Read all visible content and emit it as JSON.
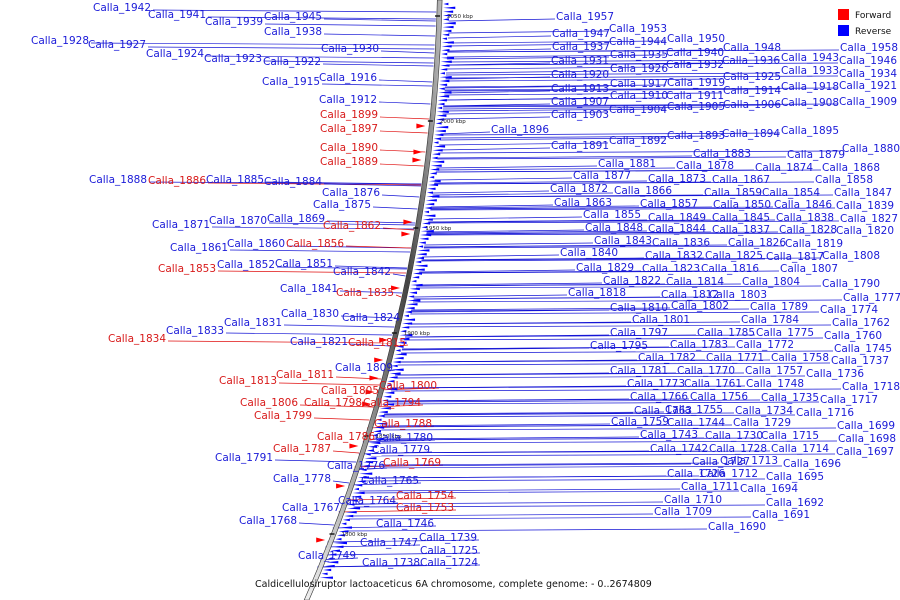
{
  "caption": "Caldicellulosiruptor lactoaceticus 6A chromosome, complete genome: - 0..2674809",
  "legend": {
    "forward": {
      "label": "Forward",
      "color": "#ff0000"
    },
    "reverse": {
      "label": "Reverse",
      "color": "#0000ff"
    }
  },
  "ticks": [
    "2050 kbp",
    "2000 kbp",
    "1950 kbp",
    "1900 kbp",
    "1850 kbp",
    "1800 kbp"
  ],
  "left_labels": [
    {
      "text": "Calla_1942",
      "strand": "reverse"
    },
    {
      "text": "Calla_1941",
      "strand": "reverse"
    },
    {
      "text": "Calla_1939",
      "strand": "reverse"
    },
    {
      "text": "Calla_1945",
      "strand": "reverse"
    },
    {
      "text": "Calla_1938",
      "strand": "reverse"
    },
    {
      "text": "Calla_1928",
      "strand": "reverse"
    },
    {
      "text": "Calla_1927",
      "strand": "reverse"
    },
    {
      "text": "Calla_1930",
      "strand": "reverse"
    },
    {
      "text": "Calla_1924",
      "strand": "reverse"
    },
    {
      "text": "Calla_1923",
      "strand": "reverse"
    },
    {
      "text": "Calla_1922",
      "strand": "reverse"
    },
    {
      "text": "Calla_1916",
      "strand": "reverse"
    },
    {
      "text": "Calla_1915",
      "strand": "reverse"
    },
    {
      "text": "Calla_1912",
      "strand": "reverse"
    },
    {
      "text": "Calla_1899",
      "strand": "forward"
    },
    {
      "text": "Calla_1897",
      "strand": "forward"
    },
    {
      "text": "Calla_1890",
      "strand": "forward"
    },
    {
      "text": "Calla_1889",
      "strand": "forward"
    },
    {
      "text": "Calla_1888",
      "strand": "reverse"
    },
    {
      "text": "Calla_1886",
      "strand": "forward"
    },
    {
      "text": "Calla_1885",
      "strand": "reverse"
    },
    {
      "text": "Calla_1884",
      "strand": "reverse"
    },
    {
      "text": "Calla_1876",
      "strand": "reverse"
    },
    {
      "text": "Calla_1875",
      "strand": "reverse"
    },
    {
      "text": "Calla_1871",
      "strand": "reverse"
    },
    {
      "text": "Calla_1870",
      "strand": "reverse"
    },
    {
      "text": "Calla_1869",
      "strand": "reverse"
    },
    {
      "text": "Calla_1862",
      "strand": "forward"
    },
    {
      "text": "Calla_1861",
      "strand": "reverse"
    },
    {
      "text": "Calla_1860",
      "strand": "reverse"
    },
    {
      "text": "Calla_1856",
      "strand": "forward"
    },
    {
      "text": "Calla_1853",
      "strand": "forward"
    },
    {
      "text": "Calla_1852",
      "strand": "reverse"
    },
    {
      "text": "Calla_1851",
      "strand": "reverse"
    },
    {
      "text": "Calla_1842",
      "strand": "reverse"
    },
    {
      "text": "Calla_1841",
      "strand": "reverse"
    },
    {
      "text": "Calla_1835",
      "strand": "forward"
    },
    {
      "text": "Calla_1830",
      "strand": "reverse"
    },
    {
      "text": "Calla_1831",
      "strand": "reverse"
    },
    {
      "text": "Calla_1824",
      "strand": "reverse"
    },
    {
      "text": "Calla_1833",
      "strand": "reverse"
    },
    {
      "text": "Calla_1834",
      "strand": "forward"
    },
    {
      "text": "Calla_1821",
      "strand": "reverse"
    },
    {
      "text": "Calla_1815",
      "strand": "forward"
    },
    {
      "text": "Calla_1809",
      "strand": "reverse"
    },
    {
      "text": "Calla_1811",
      "strand": "forward"
    },
    {
      "text": "Calla_1813",
      "strand": "forward"
    },
    {
      "text": "Calla_1800",
      "strand": "forward"
    },
    {
      "text": "Calla_1805",
      "strand": "forward"
    },
    {
      "text": "Calla_1806",
      "strand": "forward"
    },
    {
      "text": "Calla_1798",
      "strand": "forward"
    },
    {
      "text": "Calla_1794",
      "strand": "forward"
    },
    {
      "text": "Calla_1799",
      "strand": "forward"
    },
    {
      "text": "Calla_1788",
      "strand": "forward"
    },
    {
      "text": "Calla_1786",
      "strand": "forward"
    },
    {
      "text": "Calla_1780",
      "strand": "reverse"
    },
    {
      "text": "Calla_1787",
      "strand": "forward"
    },
    {
      "text": "Calla_1779",
      "strand": "reverse"
    },
    {
      "text": "Calla_1791",
      "strand": "reverse"
    },
    {
      "text": "Calla_1776",
      "strand": "reverse"
    },
    {
      "text": "Calla_1769",
      "strand": "forward"
    },
    {
      "text": "Calla_1778",
      "strand": "reverse"
    },
    {
      "text": "Calla_1765",
      "strand": "reverse"
    },
    {
      "text": "Calla_1754",
      "strand": "forward"
    },
    {
      "text": "Calla_1764",
      "strand": "reverse"
    },
    {
      "text": "Calla_1753",
      "strand": "forward"
    },
    {
      "text": "Calla_1767",
      "strand": "reverse"
    },
    {
      "text": "Calla_1768",
      "strand": "reverse"
    },
    {
      "text": "Calla_1746",
      "strand": "reverse"
    },
    {
      "text": "Calla_1739",
      "strand": "reverse"
    },
    {
      "text": "Calla_1747",
      "strand": "reverse"
    },
    {
      "text": "Calla_1725",
      "strand": "reverse"
    },
    {
      "text": "Calla_1749",
      "strand": "reverse"
    },
    {
      "text": "Calla_1738",
      "strand": "reverse"
    },
    {
      "text": "Calla_1724",
      "strand": "reverse"
    }
  ],
  "right_labels": [
    {
      "text": "Calla_1957",
      "strand": "reverse"
    },
    {
      "text": "Calla_1953",
      "strand": "reverse"
    },
    {
      "text": "Calla_1947",
      "strand": "reverse"
    },
    {
      "text": "Calla_1950",
      "strand": "reverse"
    },
    {
      "text": "Calla_1944",
      "strand": "reverse"
    },
    {
      "text": "Calla_1937",
      "strand": "reverse"
    },
    {
      "text": "Calla_1940",
      "strand": "reverse"
    },
    {
      "text": "Calla_1948",
      "strand": "reverse"
    },
    {
      "text": "Calla_1935",
      "strand": "reverse"
    },
    {
      "text": "Calla_1958",
      "strand": "reverse"
    },
    {
      "text": "Calla_1931",
      "strand": "reverse"
    },
    {
      "text": "Calla_1932",
      "strand": "reverse"
    },
    {
      "text": "Calla_1936",
      "strand": "reverse"
    },
    {
      "text": "Calla_1943",
      "strand": "reverse"
    },
    {
      "text": "Calla_1946",
      "strand": "reverse"
    },
    {
      "text": "Calla_1926",
      "strand": "reverse"
    },
    {
      "text": "Calla_1933",
      "strand": "reverse"
    },
    {
      "text": "Calla_1920",
      "strand": "reverse"
    },
    {
      "text": "Calla_1925",
      "strand": "reverse"
    },
    {
      "text": "Calla_1934",
      "strand": "reverse"
    },
    {
      "text": "Calla_1917",
      "strand": "reverse"
    },
    {
      "text": "Calla_1919",
      "strand": "reverse"
    },
    {
      "text": "Calla_1918",
      "strand": "reverse"
    },
    {
      "text": "Calla_1921",
      "strand": "reverse"
    },
    {
      "text": "Calla_1913",
      "strand": "reverse"
    },
    {
      "text": "Calla_1910",
      "strand": "reverse"
    },
    {
      "text": "Calla_1911",
      "strand": "reverse"
    },
    {
      "text": "Calla_1914",
      "strand": "reverse"
    },
    {
      "text": "Calla_1907",
      "strand": "reverse"
    },
    {
      "text": "Calla_1906",
      "strand": "reverse"
    },
    {
      "text": "Calla_1908",
      "strand": "reverse"
    },
    {
      "text": "Calla_1909",
      "strand": "reverse"
    },
    {
      "text": "Calla_1904",
      "strand": "reverse"
    },
    {
      "text": "Calla_1905",
      "strand": "reverse"
    },
    {
      "text": "Calla_1903",
      "strand": "reverse"
    },
    {
      "text": "Calla_1896",
      "strand": "reverse"
    },
    {
      "text": "Calla_1895",
      "strand": "reverse"
    },
    {
      "text": "Calla_1893",
      "strand": "reverse"
    },
    {
      "text": "Calla_1894",
      "strand": "reverse"
    },
    {
      "text": "Calla_1892",
      "strand": "reverse"
    },
    {
      "text": "Calla_1891",
      "strand": "reverse"
    },
    {
      "text": "Calla_1880",
      "strand": "reverse"
    },
    {
      "text": "Calla_1883",
      "strand": "reverse"
    },
    {
      "text": "Calla_1879",
      "strand": "reverse"
    },
    {
      "text": "Calla_1881",
      "strand": "reverse"
    },
    {
      "text": "Calla_1878",
      "strand": "reverse"
    },
    {
      "text": "Calla_1874",
      "strand": "reverse"
    },
    {
      "text": "Calla_1868",
      "strand": "reverse"
    },
    {
      "text": "Calla_1877",
      "strand": "reverse"
    },
    {
      "text": "Calla_1873",
      "strand": "reverse"
    },
    {
      "text": "Calla_1867",
      "strand": "reverse"
    },
    {
      "text": "Calla_1858",
      "strand": "reverse"
    },
    {
      "text": "Calla_1872",
      "strand": "reverse"
    },
    {
      "text": "Calla_1866",
      "strand": "reverse"
    },
    {
      "text": "Calla_1859",
      "strand": "reverse"
    },
    {
      "text": "Calla_1854",
      "strand": "reverse"
    },
    {
      "text": "Calla_1847",
      "strand": "reverse"
    },
    {
      "text": "Calla_1863",
      "strand": "reverse"
    },
    {
      "text": "Calla_1857",
      "strand": "reverse"
    },
    {
      "text": "Calla_1850",
      "strand": "reverse"
    },
    {
      "text": "Calla_1846",
      "strand": "reverse"
    },
    {
      "text": "Calla_1839",
      "strand": "reverse"
    },
    {
      "text": "Calla_1855",
      "strand": "reverse"
    },
    {
      "text": "Calla_1849",
      "strand": "reverse"
    },
    {
      "text": "Calla_1845",
      "strand": "reverse"
    },
    {
      "text": "Calla_1838",
      "strand": "reverse"
    },
    {
      "text": "Calla_1827",
      "strand": "reverse"
    },
    {
      "text": "Calla_1848",
      "strand": "reverse"
    },
    {
      "text": "Calla_1844",
      "strand": "reverse"
    },
    {
      "text": "Calla_1837",
      "strand": "reverse"
    },
    {
      "text": "Calla_1828",
      "strand": "reverse"
    },
    {
      "text": "Calla_1820",
      "strand": "reverse"
    },
    {
      "text": "Calla_1843",
      "strand": "reverse"
    },
    {
      "text": "Calla_1836",
      "strand": "reverse"
    },
    {
      "text": "Calla_1826",
      "strand": "reverse"
    },
    {
      "text": "Calla_1819",
      "strand": "reverse"
    },
    {
      "text": "Calla_1840",
      "strand": "reverse"
    },
    {
      "text": "Calla_1832",
      "strand": "reverse"
    },
    {
      "text": "Calla_1825",
      "strand": "reverse"
    },
    {
      "text": "Calla_1817",
      "strand": "reverse"
    },
    {
      "text": "Calla_1808",
      "strand": "reverse"
    },
    {
      "text": "Calla_1829",
      "strand": "reverse"
    },
    {
      "text": "Calla_1823",
      "strand": "reverse"
    },
    {
      "text": "Calla_1816",
      "strand": "reverse"
    },
    {
      "text": "Calla_1807",
      "strand": "reverse"
    },
    {
      "text": "Calla_1822",
      "strand": "reverse"
    },
    {
      "text": "Calla_1814",
      "strand": "reverse"
    },
    {
      "text": "Calla_1804",
      "strand": "reverse"
    },
    {
      "text": "Calla_1790",
      "strand": "reverse"
    },
    {
      "text": "Calla_1818",
      "strand": "reverse"
    },
    {
      "text": "Calla_1812",
      "strand": "reverse"
    },
    {
      "text": "Calla_1803",
      "strand": "reverse"
    },
    {
      "text": "Calla_1777",
      "strand": "reverse"
    },
    {
      "text": "Calla_1810",
      "strand": "reverse"
    },
    {
      "text": "Calla_1802",
      "strand": "reverse"
    },
    {
      "text": "Calla_1789",
      "strand": "reverse"
    },
    {
      "text": "Calla_1774",
      "strand": "reverse"
    },
    {
      "text": "Calla_1801",
      "strand": "reverse"
    },
    {
      "text": "Calla_1784",
      "strand": "reverse"
    },
    {
      "text": "Calla_1762",
      "strand": "reverse"
    },
    {
      "text": "Calla_1797",
      "strand": "reverse"
    },
    {
      "text": "Calla_1785",
      "strand": "reverse"
    },
    {
      "text": "Calla_1775",
      "strand": "reverse"
    },
    {
      "text": "Calla_1760",
      "strand": "reverse"
    },
    {
      "text": "Calla_1795",
      "strand": "reverse"
    },
    {
      "text": "Calla_1783",
      "strand": "reverse"
    },
    {
      "text": "Calla_1772",
      "strand": "reverse"
    },
    {
      "text": "Calla_1745",
      "strand": "reverse"
    },
    {
      "text": "Calla_1782",
      "strand": "reverse"
    },
    {
      "text": "Calla_1771",
      "strand": "reverse"
    },
    {
      "text": "Calla_1758",
      "strand": "reverse"
    },
    {
      "text": "Calla_1737",
      "strand": "reverse"
    },
    {
      "text": "Calla_1781",
      "strand": "reverse"
    },
    {
      "text": "Calla_1770",
      "strand": "reverse"
    },
    {
      "text": "Calla_1757",
      "strand": "reverse"
    },
    {
      "text": "Calla_1736",
      "strand": "reverse"
    },
    {
      "text": "Calla_1773",
      "strand": "reverse"
    },
    {
      "text": "Calla_1761",
      "strand": "reverse"
    },
    {
      "text": "Calla_1748",
      "strand": "reverse"
    },
    {
      "text": "Calla_1718",
      "strand": "reverse"
    },
    {
      "text": "Calla_1766",
      "strand": "reverse"
    },
    {
      "text": "Calla_1756",
      "strand": "reverse"
    },
    {
      "text": "Calla_1735",
      "strand": "reverse"
    },
    {
      "text": "Calla_1717",
      "strand": "reverse"
    },
    {
      "text": "Calla_1763",
      "strand": "reverse"
    },
    {
      "text": "Calla_1755",
      "strand": "reverse"
    },
    {
      "text": "Calla_1734",
      "strand": "reverse"
    },
    {
      "text": "Calla_1716",
      "strand": "reverse"
    },
    {
      "text": "Calla_1759",
      "strand": "reverse"
    },
    {
      "text": "Calla_1744",
      "strand": "reverse"
    },
    {
      "text": "Calla_1729",
      "strand": "reverse"
    },
    {
      "text": "Calla_1699",
      "strand": "reverse"
    },
    {
      "text": "Calla_1743",
      "strand": "reverse"
    },
    {
      "text": "Calla_1730",
      "strand": "reverse"
    },
    {
      "text": "Calla_1715",
      "strand": "reverse"
    },
    {
      "text": "Calla_1698",
      "strand": "reverse"
    },
    {
      "text": "Calla_1742",
      "strand": "reverse"
    },
    {
      "text": "Calla_1728",
      "strand": "reverse"
    },
    {
      "text": "Calla_1714",
      "strand": "reverse"
    },
    {
      "text": "Calla_1697",
      "strand": "reverse"
    },
    {
      "text": "Calla_1727",
      "strand": "reverse"
    },
    {
      "text": "Calla_1713",
      "strand": "reverse"
    },
    {
      "text": "Calla_1696",
      "strand": "reverse"
    },
    {
      "text": "Calla_1726",
      "strand": "reverse"
    },
    {
      "text": "Calla_1712",
      "strand": "reverse"
    },
    {
      "text": "Calla_1695",
      "strand": "reverse"
    },
    {
      "text": "Calla_1711",
      "strand": "reverse"
    },
    {
      "text": "Calla_1694",
      "strand": "reverse"
    },
    {
      "text": "Calla_1710",
      "strand": "reverse"
    },
    {
      "text": "Calla_1692",
      "strand": "reverse"
    },
    {
      "text": "Calla_1709",
      "strand": "reverse"
    },
    {
      "text": "Calla_1691",
      "strand": "reverse"
    },
    {
      "text": "Calla_1690",
      "strand": "reverse"
    }
  ]
}
